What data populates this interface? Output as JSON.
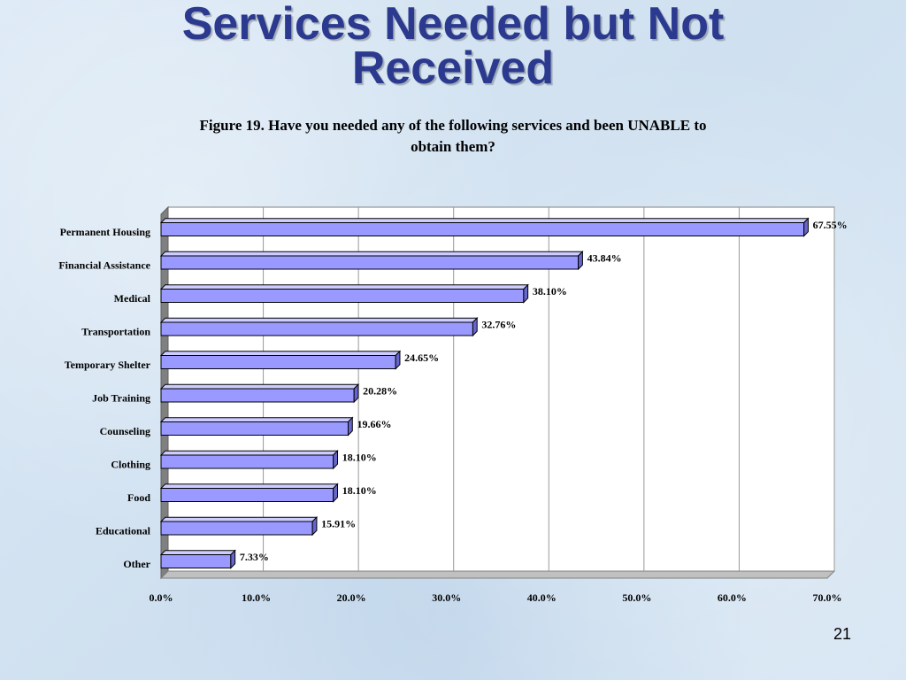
{
  "slide": {
    "title_line1": "Services Needed but Not",
    "title_line2": "Received",
    "caption_line1": "Figure 19.  Have you needed any of the following services and been UNABLE to",
    "caption_line2": "obtain them?",
    "slide_number": "21"
  },
  "colors": {
    "bar_fill": "#9999ff",
    "bar_side": "#6666cc",
    "bar_top": "#ccccff",
    "title": "#2b3a8f"
  },
  "chart_data": {
    "type": "bar",
    "orientation": "horizontal",
    "style": "3d",
    "categories": [
      "Permanent Housing",
      "Financial Assistance",
      "Medical",
      "Transportation",
      "Temporary Shelter",
      "Job Training",
      "Counseling",
      "Clothing",
      "Food",
      "Educational",
      "Other"
    ],
    "values": [
      67.55,
      43.84,
      38.1,
      32.76,
      24.65,
      20.28,
      19.66,
      18.1,
      18.1,
      15.91,
      7.33
    ],
    "data_labels": [
      "67.55%",
      "43.84%",
      "38.10%",
      "32.76%",
      "24.65%",
      "20.28%",
      "19.66%",
      "18.10%",
      "18.10%",
      "15.91%",
      "7.33%"
    ],
    "x_ticks": [
      0,
      10,
      20,
      30,
      40,
      50,
      60,
      70
    ],
    "x_tick_labels": [
      "0.0%",
      "10.0%",
      "20.0%",
      "30.0%",
      "40.0%",
      "50.0%",
      "60.0%",
      "70.0%"
    ],
    "xlim": [
      0,
      70
    ],
    "grid": true,
    "legend": false
  }
}
